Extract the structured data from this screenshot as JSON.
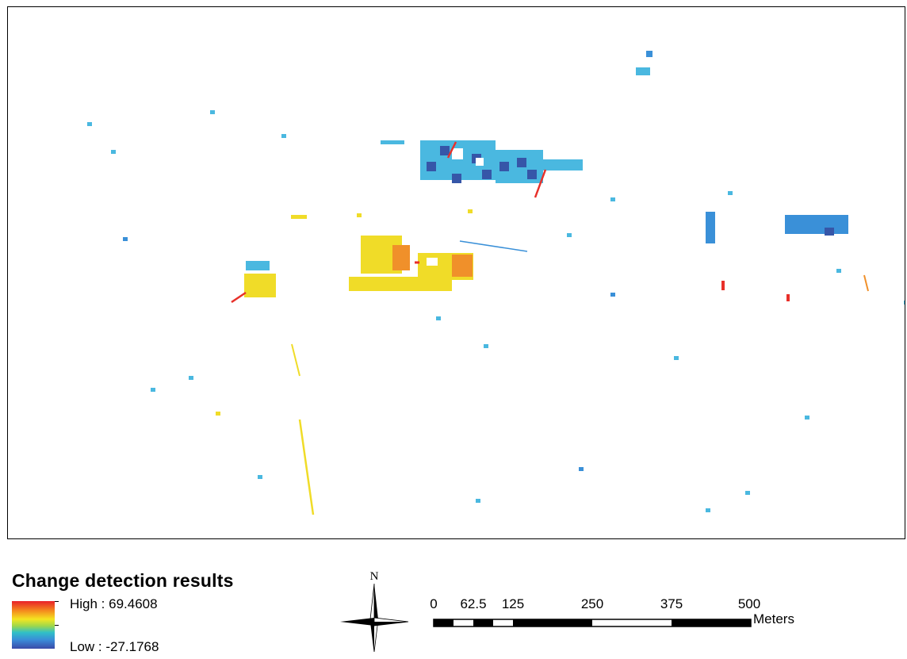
{
  "legend": {
    "title": "Change detection results",
    "high_label": "High : 69.4608",
    "low_label": "Low : -27.1768",
    "ramp_colors": [
      "#e8202a",
      "#f48a1e",
      "#f4e520",
      "#a0d84a",
      "#30c0c8",
      "#3a8ad8",
      "#3a4aa8"
    ]
  },
  "north_arrow": {
    "label": "N",
    "icon": "north-arrow-icon"
  },
  "scale_bar": {
    "ticks": [
      "0",
      "62.5",
      "125",
      "250",
      "375",
      "500"
    ],
    "units": "Meters"
  },
  "colors": {
    "red": "#e8302a",
    "orange": "#f0902a",
    "yellow": "#f0dc28",
    "light_blue": "#4ab8e0",
    "mid_blue": "#3a90d8",
    "dark_blue": "#3656a8"
  }
}
